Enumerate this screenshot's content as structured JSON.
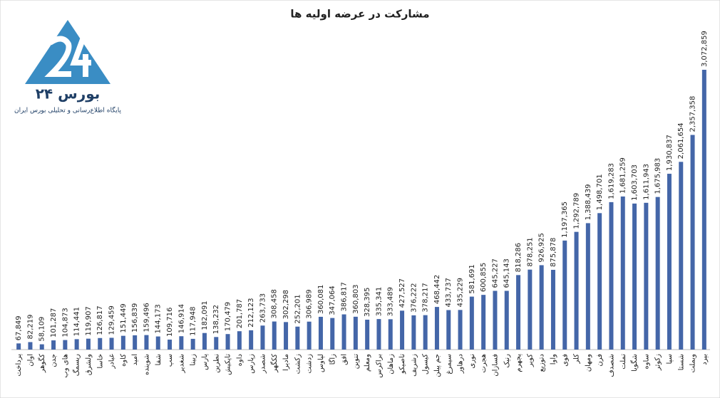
{
  "logo": {
    "name": "بورس ۲۴",
    "tagline": "پایگاه اطلاع‌رسانی و تحلیلی بورس ایران"
  },
  "chart_data": {
    "type": "bar",
    "title": "مشارکت در عرضه اولیه ها",
    "color": "#4466a8",
    "categories": [
      "پرداخت",
      "اوان",
      "کگوهر",
      "جدن",
      "های وب",
      "ریسمگ",
      "ولشرق",
      "خاسا",
      "غبادر",
      "کاوه",
      "امید",
      "شوینده",
      "شفا",
      "سپ",
      "شغدیر",
      "زبینا",
      "پارس",
      "نطرین",
      "تاپکیش",
      "داوه",
      "زپارس",
      "شصدر",
      "ککگهر",
      "ماديرا",
      "زکشت",
      "زدشت",
      "لپاوس",
      "زاگا",
      "افق",
      "تنوین",
      "ومعلم",
      "براکرس",
      "زماهان",
      "تاصیکو",
      "زشریف",
      "کیسول",
      "جم پیلن",
      "سیمرغ",
      "درهاور",
      "نوری",
      "هجرت",
      "فسازان",
      "رنیک",
      "پجهرم",
      "کویر",
      "دتوزیع",
      "واوا",
      "فوی",
      "کلر",
      "ومهان",
      "فرن",
      "شصدف",
      "تملت",
      "شگویا",
      "ساوه",
      "زکوثر",
      "سپا",
      "شستا",
      "وبملت",
      "بپرد"
    ],
    "values": [
      67849,
      82219,
      58109,
      101287,
      104873,
      114441,
      119907,
      126817,
      129459,
      151449,
      156839,
      159496,
      144173,
      109716,
      146914,
      117948,
      182091,
      138232,
      170479,
      201787,
      212123,
      263733,
      308458,
      302298,
      252201,
      306989,
      360081,
      347064,
      386817,
      360803,
      328395,
      335341,
      333489,
      427527,
      376222,
      378217,
      468442,
      433737,
      435229,
      581691,
      600855,
      645227,
      645143,
      818286,
      878251,
      926925,
      875878,
      1197365,
      1292789,
      1388439,
      1498701,
      1619283,
      1681259,
      1603703,
      1611943,
      1675983,
      1930837,
      2061654,
      2357358,
      3072859
    ],
    "value_labels": [
      "67,849",
      "82,219",
      "58,109",
      "101,287",
      "104,873",
      "114,441",
      "119,907",
      "126,817",
      "129,459",
      "151,449",
      "156,839",
      "159,496",
      "144,173",
      "109,716",
      "146,914",
      "117,948",
      "182,091",
      "138,232",
      "170,479",
      "201,787",
      "212,123",
      "263,733",
      "308,458",
      "302,298",
      "252,201",
      "306,989",
      "360,081",
      "347,064",
      "386,817",
      "360,803",
      "328,395",
      "335,341",
      "333,489",
      "427,527",
      "376,222",
      "378,217",
      "468,442",
      "433,737",
      "435,229",
      "581,691",
      "600,855",
      "645,227",
      "645,143",
      "818,286",
      "878,251",
      "926,925",
      "875,878",
      "1,197,365",
      "1,292,789",
      "1,388,439",
      "1,498,701",
      "1,619,283",
      "1,681,259",
      "1,603,703",
      "1,611,943",
      "1,675,983",
      "1,930,837",
      "2,061,654",
      "2,357,358",
      "3,072,859"
    ]
  }
}
